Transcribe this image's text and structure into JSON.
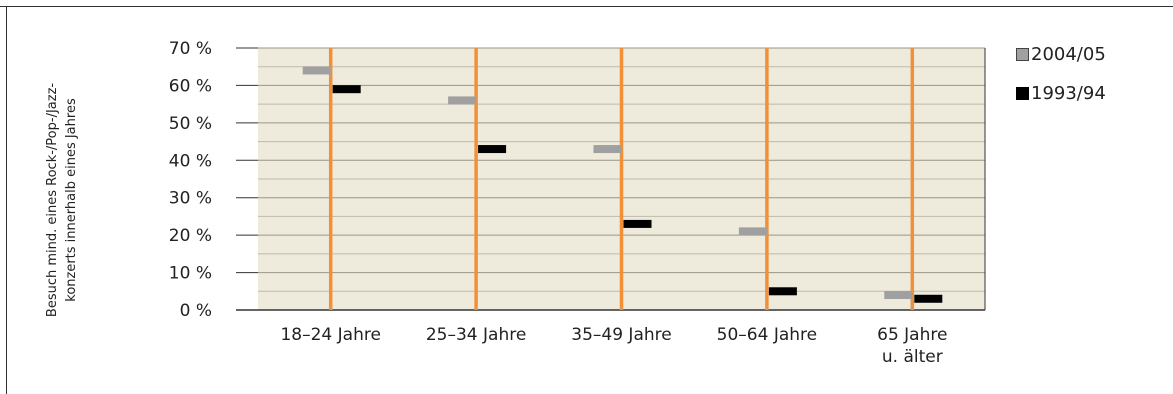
{
  "chart_data": {
    "type": "dot-bar",
    "ylabel_lines": [
      "Besuch mind. eines Rock-/Pop-/Jazz-",
      "konzerts innerhalb eines Jahres"
    ],
    "ylim": [
      0,
      70
    ],
    "yticks": [
      0,
      10,
      20,
      30,
      40,
      50,
      60,
      70
    ],
    "ytick_labels": [
      "0 %",
      "10 %",
      "20 %",
      "30 %",
      "40 %",
      "50 %",
      "60 %",
      "70 %"
    ],
    "categories": [
      "18–24 Jahre",
      "25–34 Jahre",
      "35–49 Jahre",
      "50–64 Jahre",
      "65 Jahre\nu. älter"
    ],
    "series": [
      {
        "name": "2004/05",
        "color": "#a0a0a0",
        "values": [
          64,
          56,
          43,
          21,
          4
        ]
      },
      {
        "name": "1993/94",
        "color": "#000000",
        "values": [
          59,
          43,
          23,
          5,
          3
        ]
      }
    ],
    "grid": true,
    "plot_background": "#eeebdc",
    "category_line_color": "#f0913a",
    "legend_position": "right"
  }
}
